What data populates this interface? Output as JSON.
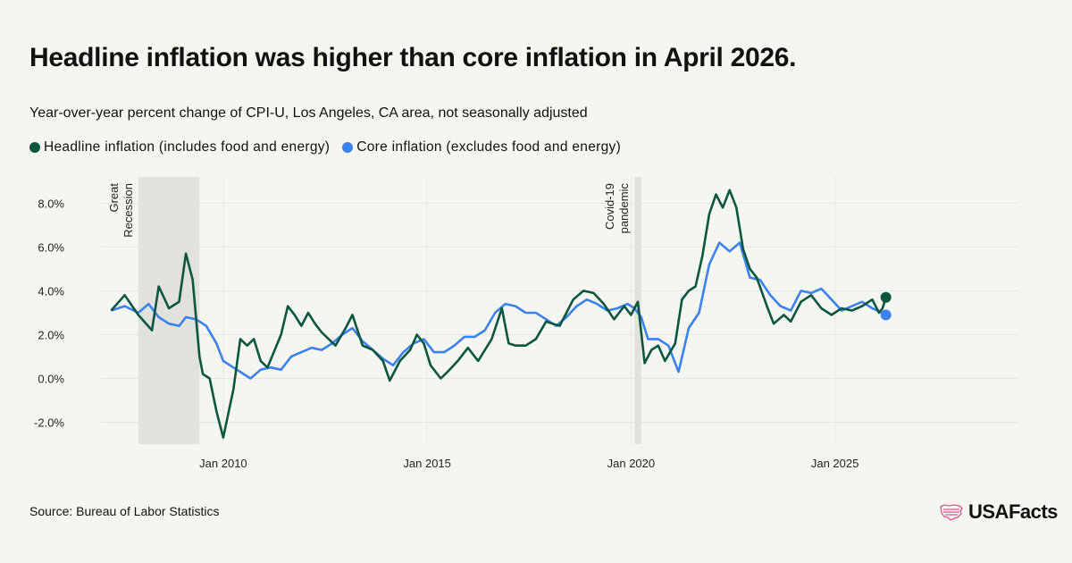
{
  "title": "Headline inflation was higher than core inflation in April 2026.",
  "subtitle": "Year-over-year percent change of CPI-U, Los Angeles, CA area, not seasonally adjusted",
  "source": "Source: Bureau of Labor Statistics",
  "logo_text": "USAFacts",
  "logo_icon": "us-map-flag-icon",
  "colors": {
    "headline": "#0c5640",
    "core": "#3b82ef",
    "band": "#e2e2dc",
    "grid": "#e6e6e0",
    "background": "#f6f6f1"
  },
  "chart_data": {
    "type": "line",
    "title": "Headline inflation was higher than core inflation in April 2026.",
    "subtitle": "Year-over-year percent change of CPI-U, Los Angeles, CA area, not seasonally adjusted",
    "xlabel": "",
    "ylabel": "",
    "xlim": [
      "2007-01",
      "2029-07"
    ],
    "ylim": [
      -3,
      9.2
    ],
    "grid": true,
    "legend_position": "top-left",
    "x_ticks": [
      "Jan 2010",
      "Jan 2015",
      "Jan 2020",
      "Jan 2025"
    ],
    "y_ticks": [
      "8.0%",
      "6.0%",
      "4.0%",
      "2.0%",
      "0.0%",
      "-2.0%"
    ],
    "y_tick_values": [
      8,
      6,
      4,
      2,
      0,
      -2
    ],
    "annotations": [
      {
        "label": "Great Recession",
        "label_lines": [
          "Great",
          "Recession"
        ],
        "start": "2007-12",
        "end": "2009-06"
      },
      {
        "label": "Covid-19 pandemic",
        "label_lines": [
          "Covid-19",
          "pandemic"
        ],
        "start": "2020-02",
        "end": "2020-04"
      }
    ],
    "series": [
      {
        "name": "Headline inflation (includes food and energy)",
        "points": [
          [
            "2007-04",
            3.1
          ],
          [
            "2007-08",
            3.8
          ],
          [
            "2007-12",
            2.9
          ],
          [
            "2008-04",
            2.2
          ],
          [
            "2008-06",
            4.2
          ],
          [
            "2008-09",
            3.2
          ],
          [
            "2008-12",
            3.5
          ],
          [
            "2009-02",
            5.7
          ],
          [
            "2009-04",
            4.5
          ],
          [
            "2009-06",
            1.0
          ],
          [
            "2009-07",
            0.2
          ],
          [
            "2009-09",
            0.0
          ],
          [
            "2009-11",
            -1.5
          ],
          [
            "2010-01",
            -2.7
          ],
          [
            "2010-04",
            -0.5
          ],
          [
            "2010-06",
            1.8
          ],
          [
            "2010-08",
            1.5
          ],
          [
            "2010-10",
            1.8
          ],
          [
            "2010-12",
            0.8
          ],
          [
            "2011-02",
            0.5
          ],
          [
            "2011-06",
            2.0
          ],
          [
            "2011-08",
            3.3
          ],
          [
            "2011-10",
            2.9
          ],
          [
            "2011-12",
            2.4
          ],
          [
            "2012-02",
            3.0
          ],
          [
            "2012-04",
            2.5
          ],
          [
            "2012-06",
            2.1
          ],
          [
            "2012-10",
            1.5
          ],
          [
            "2013-01",
            2.3
          ],
          [
            "2013-03",
            2.9
          ],
          [
            "2013-06",
            1.5
          ],
          [
            "2013-09",
            1.3
          ],
          [
            "2013-12",
            0.8
          ],
          [
            "2014-02",
            -0.1
          ],
          [
            "2014-05",
            0.8
          ],
          [
            "2014-08",
            1.3
          ],
          [
            "2014-10",
            2.0
          ],
          [
            "2014-12",
            1.6
          ],
          [
            "2015-02",
            0.6
          ],
          [
            "2015-05",
            0.0
          ],
          [
            "2015-07",
            0.3
          ],
          [
            "2015-10",
            0.8
          ],
          [
            "2016-01",
            1.4
          ],
          [
            "2016-04",
            0.8
          ],
          [
            "2016-08",
            1.8
          ],
          [
            "2016-11",
            3.2
          ],
          [
            "2017-01",
            1.6
          ],
          [
            "2017-03",
            1.5
          ],
          [
            "2017-06",
            1.5
          ],
          [
            "2017-09",
            1.8
          ],
          [
            "2017-12",
            2.6
          ],
          [
            "2018-04",
            2.4
          ],
          [
            "2018-08",
            3.6
          ],
          [
            "2018-11",
            4.0
          ],
          [
            "2019-02",
            3.9
          ],
          [
            "2019-05",
            3.4
          ],
          [
            "2019-08",
            2.7
          ],
          [
            "2019-11",
            3.3
          ],
          [
            "2020-01",
            2.9
          ],
          [
            "2020-03",
            3.5
          ],
          [
            "2020-05",
            0.7
          ],
          [
            "2020-07",
            1.3
          ],
          [
            "2020-09",
            1.5
          ],
          [
            "2020-11",
            0.8
          ],
          [
            "2021-02",
            1.6
          ],
          [
            "2021-04",
            3.6
          ],
          [
            "2021-06",
            4.0
          ],
          [
            "2021-08",
            4.2
          ],
          [
            "2021-10",
            5.6
          ],
          [
            "2021-12",
            7.5
          ],
          [
            "2022-02",
            8.4
          ],
          [
            "2022-04",
            7.8
          ],
          [
            "2022-06",
            8.6
          ],
          [
            "2022-08",
            7.8
          ],
          [
            "2022-10",
            5.9
          ],
          [
            "2022-12",
            5.0
          ],
          [
            "2023-02",
            4.6
          ],
          [
            "2023-05",
            3.3
          ],
          [
            "2023-07",
            2.5
          ],
          [
            "2023-10",
            2.9
          ],
          [
            "2023-12",
            2.6
          ],
          [
            "2024-03",
            3.5
          ],
          [
            "2024-06",
            3.8
          ],
          [
            "2024-09",
            3.2
          ],
          [
            "2024-12",
            2.9
          ],
          [
            "2025-03",
            3.2
          ],
          [
            "2025-06",
            3.1
          ],
          [
            "2025-09",
            3.3
          ],
          [
            "2025-12",
            3.6
          ],
          [
            "2026-02",
            3.0
          ],
          [
            "2026-03",
            3.2
          ],
          [
            "2026-04",
            3.7
          ]
        ]
      },
      {
        "name": "Core inflation (excludes food and energy)",
        "points": [
          [
            "2007-04",
            3.1
          ],
          [
            "2007-08",
            3.3
          ],
          [
            "2007-12",
            3.0
          ],
          [
            "2008-03",
            3.4
          ],
          [
            "2008-06",
            2.8
          ],
          [
            "2008-09",
            2.5
          ],
          [
            "2008-12",
            2.4
          ],
          [
            "2009-02",
            2.8
          ],
          [
            "2009-05",
            2.7
          ],
          [
            "2009-08",
            2.4
          ],
          [
            "2009-11",
            1.6
          ],
          [
            "2010-01",
            0.8
          ],
          [
            "2010-03",
            0.6
          ],
          [
            "2010-06",
            0.3
          ],
          [
            "2010-09",
            0.0
          ],
          [
            "2010-12",
            0.4
          ],
          [
            "2011-03",
            0.5
          ],
          [
            "2011-06",
            0.4
          ],
          [
            "2011-09",
            1.0
          ],
          [
            "2011-12",
            1.2
          ],
          [
            "2012-03",
            1.4
          ],
          [
            "2012-06",
            1.3
          ],
          [
            "2012-09",
            1.6
          ],
          [
            "2012-12",
            2.0
          ],
          [
            "2013-03",
            2.3
          ],
          [
            "2013-06",
            1.7
          ],
          [
            "2013-09",
            1.3
          ],
          [
            "2013-12",
            0.9
          ],
          [
            "2014-03",
            0.6
          ],
          [
            "2014-06",
            1.2
          ],
          [
            "2014-09",
            1.6
          ],
          [
            "2014-12",
            1.8
          ],
          [
            "2015-03",
            1.2
          ],
          [
            "2015-06",
            1.2
          ],
          [
            "2015-09",
            1.5
          ],
          [
            "2015-12",
            1.9
          ],
          [
            "2016-03",
            1.9
          ],
          [
            "2016-06",
            2.2
          ],
          [
            "2016-09",
            3.0
          ],
          [
            "2016-12",
            3.4
          ],
          [
            "2017-03",
            3.3
          ],
          [
            "2017-06",
            3.0
          ],
          [
            "2017-09",
            3.0
          ],
          [
            "2017-12",
            2.7
          ],
          [
            "2018-03",
            2.4
          ],
          [
            "2018-06",
            2.8
          ],
          [
            "2018-09",
            3.3
          ],
          [
            "2018-12",
            3.6
          ],
          [
            "2019-03",
            3.4
          ],
          [
            "2019-06",
            3.1
          ],
          [
            "2019-09",
            3.2
          ],
          [
            "2019-12",
            3.4
          ],
          [
            "2020-02",
            3.2
          ],
          [
            "2020-04",
            2.8
          ],
          [
            "2020-06",
            1.8
          ],
          [
            "2020-09",
            1.8
          ],
          [
            "2020-12",
            1.5
          ],
          [
            "2021-03",
            0.3
          ],
          [
            "2021-06",
            2.3
          ],
          [
            "2021-09",
            3.0
          ],
          [
            "2021-12",
            5.2
          ],
          [
            "2022-03",
            6.2
          ],
          [
            "2022-06",
            5.8
          ],
          [
            "2022-09",
            6.2
          ],
          [
            "2022-12",
            4.6
          ],
          [
            "2023-03",
            4.5
          ],
          [
            "2023-06",
            3.8
          ],
          [
            "2023-09",
            3.3
          ],
          [
            "2023-12",
            3.1
          ],
          [
            "2024-03",
            4.0
          ],
          [
            "2024-06",
            3.9
          ],
          [
            "2024-09",
            4.1
          ],
          [
            "2024-12",
            3.6
          ],
          [
            "2025-03",
            3.1
          ],
          [
            "2025-06",
            3.3
          ],
          [
            "2025-09",
            3.5
          ],
          [
            "2025-12",
            3.2
          ],
          [
            "2026-03",
            3.0
          ],
          [
            "2026-04",
            2.9
          ]
        ]
      }
    ]
  }
}
